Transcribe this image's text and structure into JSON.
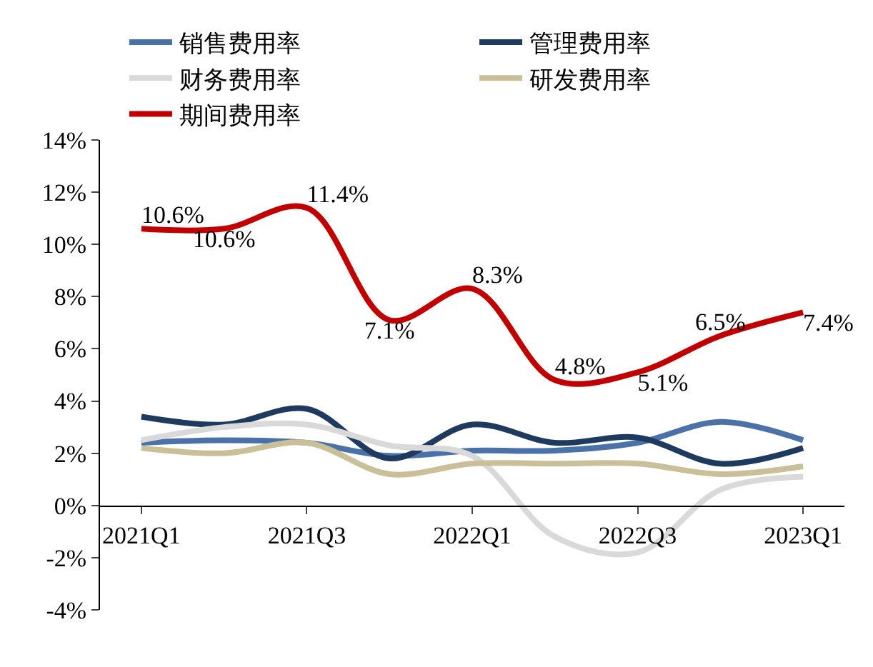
{
  "chart_data": {
    "type": "line",
    "categories": [
      "2021Q1",
      null,
      "2021Q3",
      null,
      "2022Q1",
      null,
      "2022Q3",
      null,
      "2023Q1"
    ],
    "series": [
      {
        "name": "销售费用率",
        "color": "#4a72a8",
        "values": [
          2.4,
          2.5,
          2.4,
          1.9,
          2.1,
          2.1,
          2.4,
          3.2,
          2.5
        ]
      },
      {
        "name": "管理费用率",
        "color": "#1f3a5f",
        "values": [
          3.4,
          3.1,
          3.7,
          1.8,
          3.1,
          2.4,
          2.6,
          1.6,
          2.2
        ]
      },
      {
        "name": "财务费用率",
        "color": "#d9d9d9",
        "values": [
          2.5,
          3.0,
          3.1,
          2.3,
          1.9,
          -1.2,
          -1.8,
          0.6,
          1.1
        ]
      },
      {
        "name": "研发费用率",
        "color": "#c9c09a",
        "values": [
          2.2,
          2.0,
          2.4,
          1.2,
          1.6,
          1.6,
          1.6,
          1.2,
          1.5
        ]
      },
      {
        "name": "期间费用率",
        "color": "#c00000",
        "values": [
          10.6,
          10.6,
          11.4,
          7.1,
          8.3,
          4.8,
          5.1,
          6.5,
          7.4
        ],
        "value_labels": [
          "10.6%",
          "10.6%",
          "11.4%",
          "7.1%",
          "8.3%",
          "4.8%",
          "5.1%",
          "6.5%",
          "7.4%"
        ]
      }
    ],
    "ylim": [
      -4,
      14
    ],
    "yticks": [
      {
        "value": -4,
        "label": "-4%"
      },
      {
        "value": -2,
        "label": "-2%"
      },
      {
        "value": 0,
        "label": "0%"
      },
      {
        "value": 2,
        "label": "2%"
      },
      {
        "value": 4,
        "label": "4%"
      },
      {
        "value": 6,
        "label": "6%"
      },
      {
        "value": 8,
        "label": "8%"
      },
      {
        "value": 10,
        "label": "10%"
      },
      {
        "value": 12,
        "label": "12%"
      },
      {
        "value": 14,
        "label": "14%"
      }
    ],
    "legend": "top",
    "marker": "none",
    "line_style": "solid"
  }
}
